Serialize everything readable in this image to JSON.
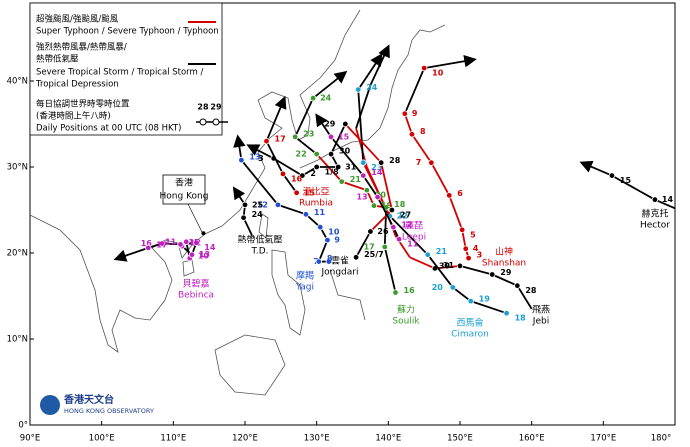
{
  "legend": {
    "typhoon_zh": "超強颱風/強颱風/颱風",
    "typhoon_en": "Super Typhoon / Severe Typhoon / Typhoon",
    "storm_zh_1": "強烈熱帶風暴/熱帶風暴/",
    "storm_zh_2": "熱帶低氣壓",
    "storm_en_1": "Severe Tropical Storm / Tropical Storm /",
    "storm_en_2": "Tropical Depression",
    "daily_zh_1": "每日協調世界時零時位置",
    "daily_zh_2": "(香港時間上午八時)",
    "daily_en": "Daily Positions at 00 UTC (08 HKT)",
    "sample_days": [
      "28",
      "29"
    ]
  },
  "hong_kong": {
    "name_zh": "香港",
    "name_en": "Hong Kong",
    "lon": 114.2,
    "lat": 22.3
  },
  "logo": {
    "name_zh": "香港天文台",
    "name_en": "HONG KONG OBSERVATORY"
  },
  "axes": {
    "lon_range": [
      90,
      180
    ],
    "lat_range": [
      0,
      49
    ],
    "xticks": [
      {
        "value": 90,
        "label": "90°E"
      },
      {
        "value": 100,
        "label": "100°E"
      },
      {
        "value": 110,
        "label": "110°E"
      },
      {
        "value": 120,
        "label": "120°E"
      },
      {
        "value": 130,
        "label": "130°E"
      },
      {
        "value": 140,
        "label": "140°E"
      },
      {
        "value": 150,
        "label": "150°E"
      },
      {
        "value": 160,
        "label": "160°E"
      },
      {
        "value": 170,
        "label": "170°E"
      },
      {
        "value": 180,
        "label": "180°"
      }
    ],
    "yticks": [
      {
        "value": 0,
        "label": "0°"
      },
      {
        "value": 10,
        "label": "10°N"
      },
      {
        "value": 20,
        "label": "20°N"
      },
      {
        "value": 30,
        "label": "30°N"
      },
      {
        "value": 40,
        "label": "40°N"
      }
    ]
  },
  "storms": [
    {
      "name_zh": "山神",
      "name_en": "Shanshan",
      "color": "#d40000",
      "points": [
        {
          "lon": 151.2,
          "lat": 19.4,
          "label": "3",
          "stage": "T"
        },
        {
          "lon": 150.8,
          "lat": 20.5,
          "label": "4",
          "stage": "T"
        },
        {
          "lon": 150.3,
          "lat": 22.7,
          "label": "5",
          "stage": "T"
        },
        {
          "lon": 148.5,
          "lat": 26.7,
          "label": "6",
          "stage": "T"
        },
        {
          "lon": 146,
          "lat": 30.5,
          "label": "7",
          "stage": "T"
        },
        {
          "lon": 143.3,
          "lat": 33.8,
          "label": "8",
          "stage": "T"
        },
        {
          "lon": 142.3,
          "lat": 36.2,
          "label": "9",
          "stage": "S"
        },
        {
          "lon": 145,
          "lat": 41.5,
          "label": "10",
          "stage": "S"
        },
        {
          "lon": 152,
          "lat": 42.5,
          "stage": "S"
        }
      ]
    },
    {
      "name_zh": "飛燕",
      "name_en": "Jebi",
      "color": "#000000",
      "points": [
        {
          "lon": 160,
          "lat": 13.5,
          "stage": "S"
        },
        {
          "lon": 158,
          "lat": 16.2,
          "label": "28",
          "stage": "S"
        },
        {
          "lon": 154.5,
          "lat": 17.5,
          "label": "29",
          "stage": "S"
        },
        {
          "lon": 150,
          "lat": 18.5,
          "label": "30",
          "stage": "T"
        },
        {
          "lon": 146.5,
          "lat": 18.2,
          "label": "31",
          "stage": "T"
        },
        {
          "lon": 143,
          "lat": 19.5,
          "stage": "T"
        },
        {
          "lon": 141,
          "lat": 22,
          "stage": "T"
        },
        {
          "lon": 139.2,
          "lat": 26,
          "stage": "T"
        },
        {
          "lon": 137,
          "lat": 30,
          "stage": "T"
        },
        {
          "lon": 135.5,
          "lat": 34.5,
          "stage": "S"
        },
        {
          "lon": 137.5,
          "lat": 39.5,
          "stage": "S"
        },
        {
          "lon": 140,
          "lat": 44,
          "stage": "S"
        }
      ]
    },
    {
      "name_zh": "西馬侖",
      "name_en": "Cimaron",
      "color": "#1a9fd6",
      "points": [
        {
          "lon": 156.5,
          "lat": 13,
          "label": "18",
          "stage": "S"
        },
        {
          "lon": 151.5,
          "lat": 14.4,
          "label": "19",
          "stage": "S"
        },
        {
          "lon": 149,
          "lat": 16,
          "label": "20",
          "stage": "S"
        },
        {
          "lon": 145.5,
          "lat": 19.8,
          "label": "21",
          "stage": "S"
        },
        {
          "lon": 140.2,
          "lat": 24.3,
          "label": "22",
          "stage": "T"
        },
        {
          "lon": 136.5,
          "lat": 30.5,
          "label": "23",
          "stage": "S"
        },
        {
          "lon": 135.8,
          "lat": 39,
          "label": "24",
          "stage": "S"
        },
        {
          "lon": 139,
          "lat": 43,
          "stage": "S"
        }
      ]
    },
    {
      "name_zh": "蘇力",
      "name_en": "Soulik",
      "color": "#3a9a2a",
      "points": [
        {
          "lon": 141,
          "lat": 15.4,
          "label": "16",
          "stage": "S"
        },
        {
          "lon": 139.5,
          "lat": 20.7,
          "label": "17",
          "stage": "S"
        },
        {
          "lon": 139.7,
          "lat": 25.3,
          "label": "18",
          "stage": "T"
        },
        {
          "lon": 138,
          "lat": 25.5,
          "label": "19",
          "stage": "T"
        },
        {
          "lon": 137,
          "lat": 27.3,
          "label": "20",
          "stage": "T"
        },
        {
          "lon": 133.5,
          "lat": 28.3,
          "label": "21",
          "stage": "T"
        },
        {
          "lon": 130,
          "lat": 31.5,
          "label": "22",
          "stage": "S"
        },
        {
          "lon": 127,
          "lat": 33.5,
          "label": "23",
          "stage": "S"
        },
        {
          "lon": 129.5,
          "lat": 38,
          "label": "24",
          "stage": "S"
        },
        {
          "lon": 134,
          "lat": 41,
          "stage": "S"
        }
      ]
    },
    {
      "name_zh": "摩羯",
      "name_en": "Yagi",
      "color": "#2050d0",
      "points": [
        {
          "lon": 131.7,
          "lat": 19,
          "label": "7",
          "stage": "S"
        },
        {
          "lon": 130.3,
          "lat": 19,
          "label": "8",
          "stage": "S"
        },
        {
          "lon": 131.5,
          "lat": 21.5,
          "label": "9",
          "stage": "S"
        },
        {
          "lon": 130.5,
          "lat": 23,
          "label": "10",
          "stage": "S"
        },
        {
          "lon": 128.5,
          "lat": 24.5,
          "label": "11",
          "stage": "S"
        },
        {
          "lon": 124.6,
          "lat": 25.6,
          "label": "12",
          "stage": "S"
        },
        {
          "lon": 119.5,
          "lat": 30.8,
          "label": "13",
          "stage": "S"
        },
        {
          "lon": 119,
          "lat": 33.5,
          "stage": "S"
        }
      ]
    },
    {
      "name_zh": "雲雀",
      "name_en": "Jongdari",
      "color": "#000000",
      "points": [
        {
          "lon": 135.5,
          "lat": 19.5,
          "label": "25/7",
          "stage": "S"
        },
        {
          "lon": 137.5,
          "lat": 22.5,
          "label": "26",
          "stage": "T"
        },
        {
          "lon": 140.5,
          "lat": 25,
          "label": "27",
          "stage": "T"
        },
        {
          "lon": 139,
          "lat": 30.5,
          "label": "28",
          "stage": "T"
        },
        {
          "lon": 134,
          "lat": 35,
          "label": "29",
          "stage": "S"
        },
        {
          "lon": 132,
          "lat": 31.5,
          "label": "30",
          "stage": "S"
        },
        {
          "lon": 133,
          "lat": 30,
          "label": "31",
          "stage": "S"
        },
        {
          "lon": 130,
          "lat": 30,
          "label": "1/8",
          "stage": "S"
        },
        {
          "lon": 128,
          "lat": 29,
          "label": "2",
          "stage": "S"
        },
        {
          "lon": 124,
          "lat": 31,
          "label": "3",
          "stage": "S"
        },
        {
          "lon": 120.5,
          "lat": 32.5,
          "stage": "S"
        }
      ]
    },
    {
      "name_zh": "溫比亞",
      "name_en": "Rumbia",
      "color": "#d40000",
      "points": [
        {
          "lon": 127.2,
          "lat": 27,
          "label": "15",
          "stage": "S"
        },
        {
          "lon": 125.3,
          "lat": 29.2,
          "label": "16",
          "stage": "S"
        },
        {
          "lon": 123,
          "lat": 33,
          "label": "17",
          "stage": "S"
        },
        {
          "lon": 125.5,
          "lat": 38,
          "stage": "S"
        }
      ]
    },
    {
      "name_zh": "麗琵",
      "name_en": "Leepi",
      "color": "#c020c0",
      "points": [
        {
          "lon": 141.5,
          "lat": 21.6,
          "label": "11",
          "stage": "S"
        },
        {
          "lon": 140.7,
          "lat": 23,
          "label": "12",
          "stage": "S"
        },
        {
          "lon": 138.5,
          "lat": 26.5,
          "label": "13",
          "stage": "S"
        },
        {
          "lon": 136.5,
          "lat": 29,
          "label": "14",
          "stage": "S"
        },
        {
          "lon": 132,
          "lat": 33.5,
          "label": "15",
          "stage": "S"
        },
        {
          "lon": 130,
          "lat": 36,
          "stage": "S"
        }
      ]
    },
    {
      "name_zh": "貝碧嘉",
      "name_en": "Bebinca",
      "color": "#c020c0",
      "points": [
        {
          "lon": 112.3,
          "lat": 19.4,
          "label": "10",
          "stage": "S"
        },
        {
          "lon": 111.8,
          "lat": 21.3,
          "label": "11",
          "stage": "S"
        },
        {
          "lon": 111.2,
          "lat": 20.8,
          "label": "12",
          "stage": "S"
        },
        {
          "lon": 112.6,
          "lat": 19.8,
          "label": "13",
          "stage": "S"
        },
        {
          "lon": 113.2,
          "lat": 21.2,
          "label": "14",
          "stage": "S"
        },
        {
          "lon": 111,
          "lat": 21,
          "label": "15",
          "stage": "S"
        },
        {
          "lon": 108.4,
          "lat": 21.1,
          "label": "16",
          "stage": "S"
        },
        {
          "lon": 106.5,
          "lat": 20.6,
          "label": "17",
          "stage": "S"
        },
        {
          "lon": 102,
          "lat": 19.3,
          "stage": "S"
        }
      ]
    },
    {
      "name_zh": "熱帶低氣壓",
      "name_en": "T.D.",
      "color": "#000000",
      "points": [
        {
          "lon": 121,
          "lat": 22,
          "stage": "S"
        },
        {
          "lon": 119.8,
          "lat": 24.1,
          "label": "24",
          "stage": "S"
        },
        {
          "lon": 120,
          "lat": 25.6,
          "label": "25",
          "stage": "S"
        },
        {
          "lon": 118.5,
          "lat": 27.5,
          "stage": "S"
        }
      ]
    },
    {
      "name_zh": "赫克托",
      "name_en": "Hector",
      "color": "#000000",
      "points": [
        {
          "lon": 180,
          "lat": 25.2,
          "stage": "S"
        },
        {
          "lon": 177.2,
          "lat": 26.2,
          "label": "14",
          "stage": "S"
        },
        {
          "lon": 171.2,
          "lat": 29,
          "label": "15",
          "stage": "S"
        },
        {
          "lon": 167,
          "lat": 30.5,
          "stage": "S"
        }
      ]
    }
  ]
}
